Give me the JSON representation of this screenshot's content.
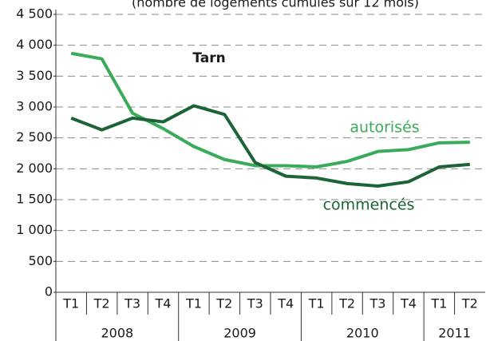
{
  "chart_data": {
    "type": "line",
    "subtitle": "(nombre de logements cumulés sur 12 mois)",
    "categories": [
      "T1",
      "T2",
      "T3",
      "T4",
      "T1",
      "T2",
      "T3",
      "T4",
      "T1",
      "T2",
      "T3",
      "T4",
      "T1",
      "T2"
    ],
    "x_groups": [
      "2008",
      "2009",
      "2010",
      "2011"
    ],
    "series": [
      {
        "name": "autorisés",
        "color": "#3aab5a",
        "values": [
          3870,
          3780,
          2900,
          2650,
          2360,
          2150,
          2050,
          2050,
          2030,
          2120,
          2280,
          2310,
          2420,
          2430
        ]
      },
      {
        "name": "commencés",
        "color": "#1c6436",
        "values": [
          2820,
          2630,
          2820,
          2760,
          3020,
          2880,
          2100,
          1880,
          1850,
          1760,
          1720,
          1790,
          2030,
          2070
        ]
      }
    ],
    "annotations": [
      {
        "text": "Tarn",
        "color": "#1a1a1a"
      }
    ],
    "ylim": [
      0,
      4500
    ],
    "yticks": [
      0,
      500,
      {
        "value": 1000,
        "label": "1 000"
      },
      {
        "value": 1500,
        "label": "1 500"
      },
      {
        "value": 2000,
        "label": "2 000"
      },
      {
        "value": 2500,
        "label": "2 500"
      },
      {
        "value": 3000,
        "label": "3 000"
      },
      {
        "value": 3500,
        "label": "3 500"
      },
      {
        "value": 4000,
        "label": "4 000"
      },
      {
        "value": 4500,
        "label": "4 500"
      }
    ],
    "grid": true
  }
}
